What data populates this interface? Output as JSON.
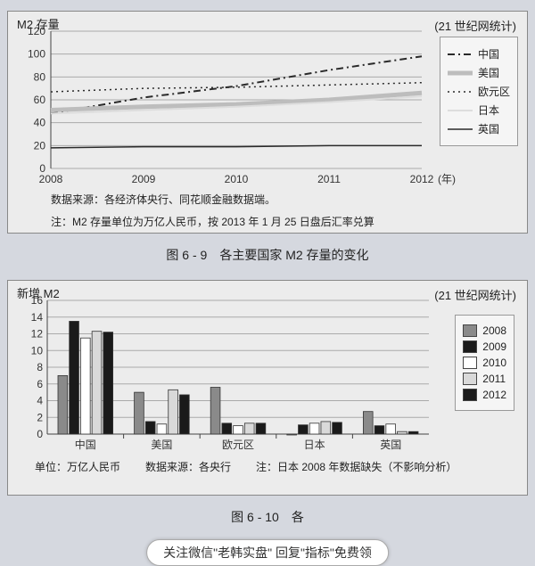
{
  "chart1": {
    "type": "line",
    "ytitle": "M2 存量",
    "stat_note": "(21 世纪网统计)",
    "ylim": [
      0,
      120
    ],
    "ytick_step": 20,
    "xticks": [
      "2008",
      "2009",
      "2010",
      "2011",
      "2012"
    ],
    "xaxis_unit": "(年)",
    "background": "#ececec",
    "grid_color": "#b0b0b0",
    "series": [
      {
        "name": "中国",
        "color": "#2a2a2a",
        "dash": "8,4,2,4",
        "width": 2,
        "values": [
          48,
          62,
          72,
          86,
          98
        ]
      },
      {
        "name": "美国",
        "color": "#bdbdbd",
        "dash": "",
        "width": 5,
        "values": [
          51,
          54,
          56,
          60,
          66
        ]
      },
      {
        "name": "欧元区",
        "color": "#2a2a2a",
        "dash": "2,4",
        "width": 1.5,
        "values": [
          67,
          70,
          71,
          73,
          75
        ]
      },
      {
        "name": "日本",
        "color": "#dddddd",
        "dash": "",
        "width": 2,
        "values": [
          48,
          51,
          54,
          58,
          63
        ]
      },
      {
        "name": "英国",
        "color": "#2a2a2a",
        "dash": "",
        "width": 1.5,
        "values": [
          18,
          19,
          19,
          20,
          20
        ]
      }
    ],
    "source_line1": "数据来源：各经济体央行、同花顺金融数据端。",
    "source_line2": "注：M2 存量单位为万亿人民币，按 2013 年 1 月 25 日盘后汇率兑算",
    "caption": "图 6 - 9　各主要国家 M2 存量的变化"
  },
  "chart2": {
    "type": "bar",
    "ytitle": "新增 M2",
    "stat_note": "(21 世纪网统计)",
    "ylim": [
      0,
      16
    ],
    "ytick_step": 2,
    "categories": [
      "中国",
      "美国",
      "欧元区",
      "日本",
      "英国"
    ],
    "years": [
      "2008",
      "2009",
      "2010",
      "2011",
      "2012"
    ],
    "year_colors": [
      "#8a8a8a",
      "#1a1a1a",
      "#ffffff",
      "#d9d9d9",
      "#1a1a1a"
    ],
    "background": "#ececec",
    "grid_color": "#b0b0b0",
    "values": [
      [
        7.0,
        13.5,
        11.5,
        12.3,
        12.2
      ],
      [
        5.0,
        1.5,
        1.2,
        5.3,
        4.7
      ],
      [
        5.6,
        1.3,
        1.0,
        1.3,
        1.3
      ],
      [
        0.0,
        1.1,
        1.3,
        1.5,
        1.4
      ],
      [
        2.7,
        1.0,
        1.2,
        0.3,
        0.3
      ]
    ],
    "footer_unit": "单位：万亿人民币",
    "footer_source": "数据来源：各央行",
    "footer_note": "注：日本 2008 年数据缺失（不影响分析）",
    "caption": "图 6 - 10　各"
  },
  "promo": "关注微信\"老韩实盘\" 回复\"指标\"免费领"
}
